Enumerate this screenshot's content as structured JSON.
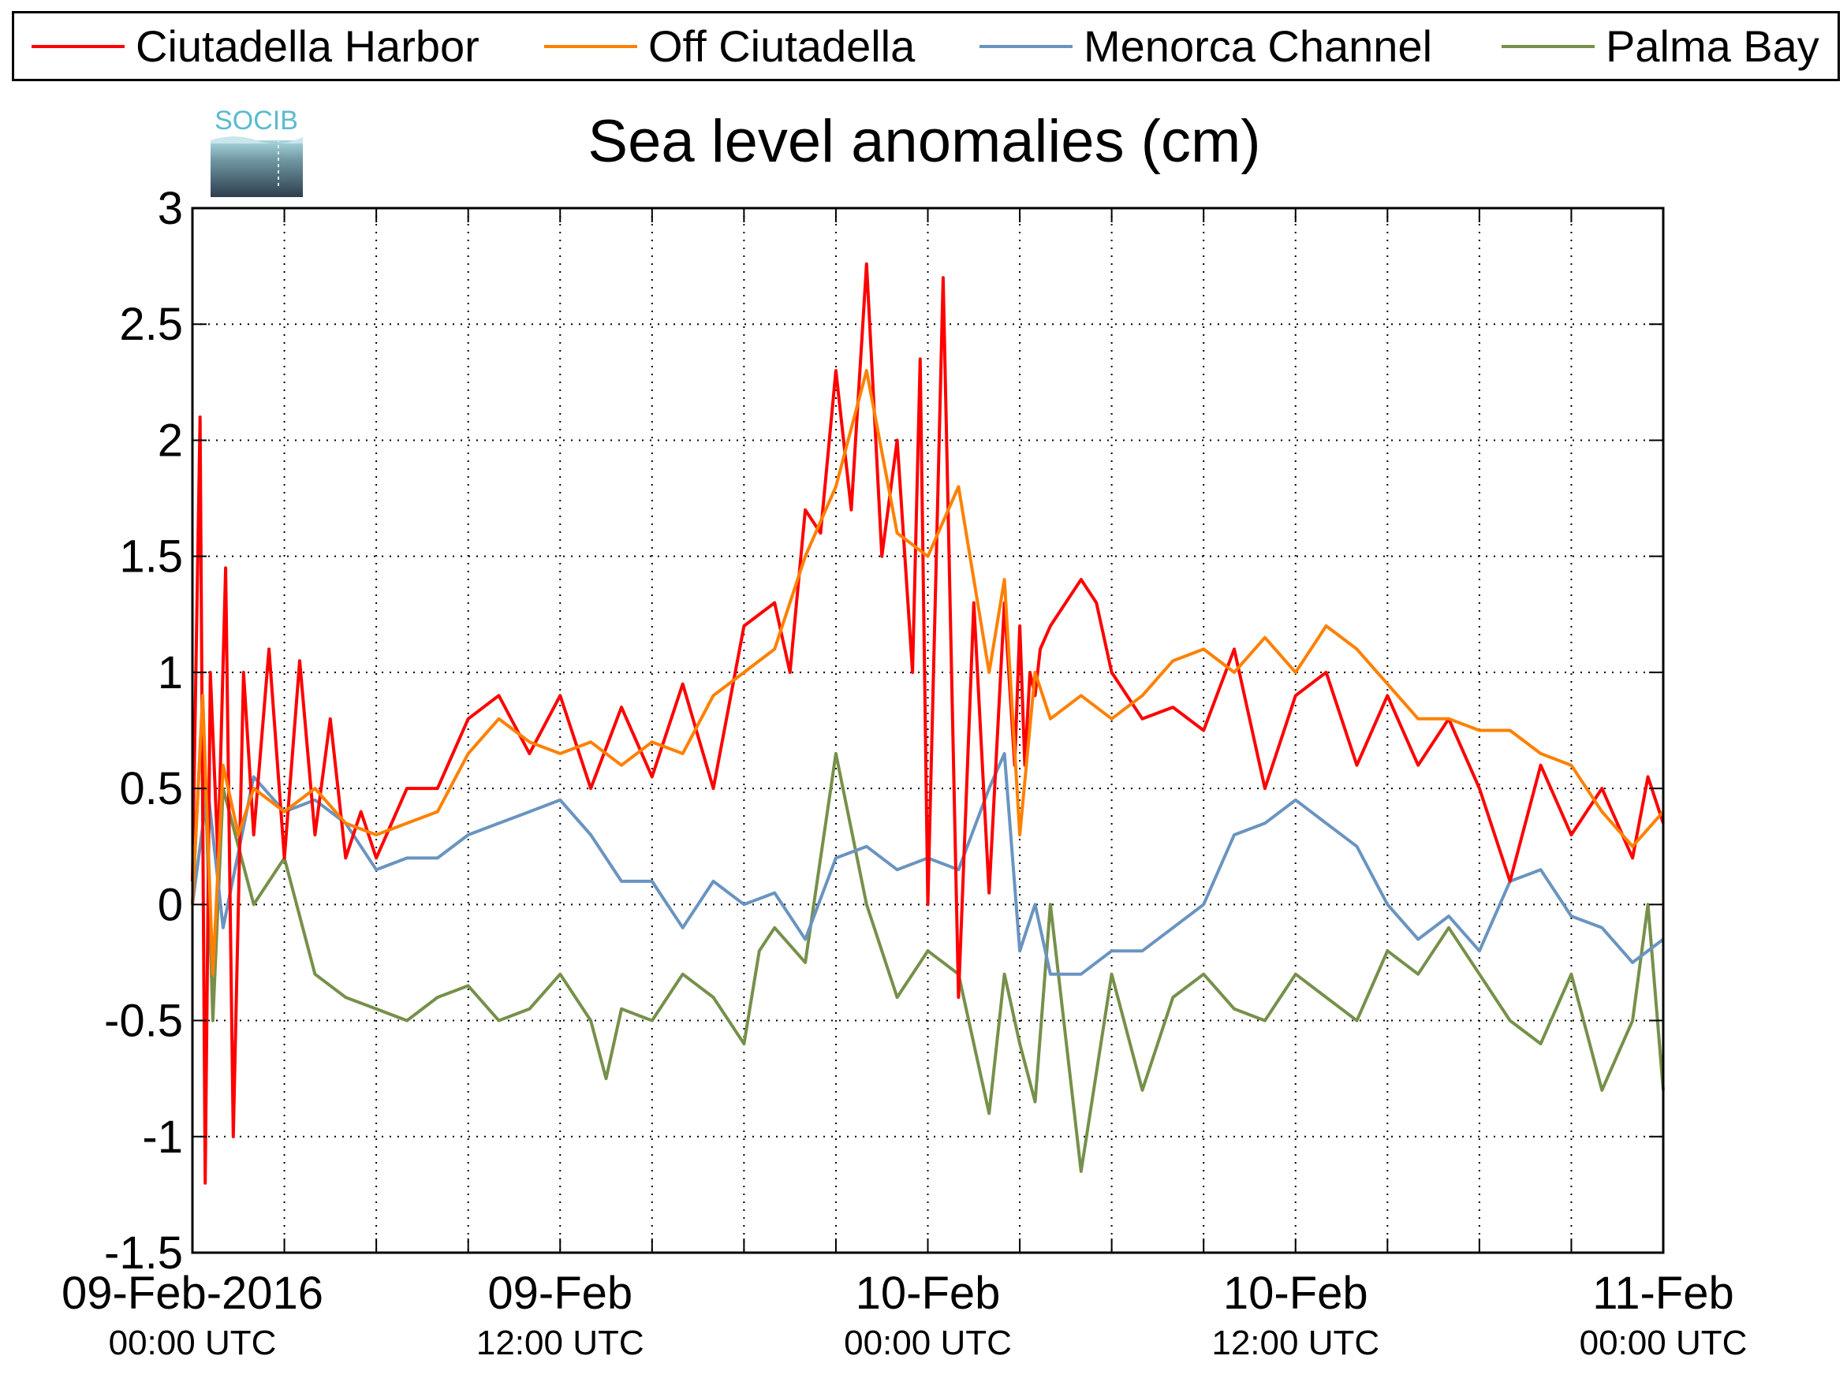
{
  "chart_data": {
    "type": "line",
    "title": "Sea level anomalies (cm)",
    "xlabel": "",
    "ylabel": "",
    "ylim": [
      -1.5,
      3
    ],
    "xlim": [
      "2016-02-09 00:00",
      "2016-02-11 00:00"
    ],
    "yticks": [
      "3",
      "2.5",
      "2",
      "1.5",
      "1",
      "0.5",
      "0",
      "-0.5",
      "-1",
      "-1.5"
    ],
    "xticks": [
      {
        "date": "09-Feb-2016",
        "time": "00:00 UTC"
      },
      {
        "date": "09-Feb",
        "time": "12:00 UTC"
      },
      {
        "date": "10-Feb",
        "time": "00:00 UTC"
      },
      {
        "date": "10-Feb",
        "time": "12:00 UTC"
      },
      {
        "date": "11-Feb",
        "time": "00:00 UTC"
      }
    ],
    "grid": true,
    "legend_position": "top",
    "series": [
      {
        "name": "Ciutadella Harbor",
        "color": "#ff0000",
        "x": [
          "2016-02-09 00:00",
          "2016-02-09 00:15",
          "2016-02-09 00:25",
          "2016-02-09 00:35",
          "2016-02-09 00:50",
          "2016-02-09 01:05",
          "2016-02-09 01:20",
          "2016-02-09 01:40",
          "2016-02-09 02:00",
          "2016-02-09 02:30",
          "2016-02-09 03:00",
          "2016-02-09 03:30",
          "2016-02-09 04:00",
          "2016-02-09 04:30",
          "2016-02-09 05:00",
          "2016-02-09 05:30",
          "2016-02-09 06:00",
          "2016-02-09 07:00",
          "2016-02-09 08:00",
          "2016-02-09 09:00",
          "2016-02-09 10:00",
          "2016-02-09 11:00",
          "2016-02-09 12:00",
          "2016-02-09 13:00",
          "2016-02-09 14:00",
          "2016-02-09 15:00",
          "2016-02-09 16:00",
          "2016-02-09 17:00",
          "2016-02-09 18:00",
          "2016-02-09 19:00",
          "2016-02-09 19:30",
          "2016-02-09 20:00",
          "2016-02-09 20:30",
          "2016-02-09 21:00",
          "2016-02-09 21:30",
          "2016-02-09 22:00",
          "2016-02-09 22:30",
          "2016-02-09 23:00",
          "2016-02-09 23:30",
          "2016-02-09 23:45",
          "2016-02-10 00:00",
          "2016-02-10 00:30",
          "2016-02-10 01:00",
          "2016-02-10 01:30",
          "2016-02-10 02:00",
          "2016-02-10 02:30",
          "2016-02-10 02:50",
          "2016-02-10 03:00",
          "2016-02-10 03:10",
          "2016-02-10 03:20",
          "2016-02-10 03:30",
          "2016-02-10 03:40",
          "2016-02-10 04:00",
          "2016-02-10 04:30",
          "2016-02-10 05:00",
          "2016-02-10 05:30",
          "2016-02-10 06:00",
          "2016-02-10 07:00",
          "2016-02-10 08:00",
          "2016-02-10 09:00",
          "2016-02-10 10:00",
          "2016-02-10 11:00",
          "2016-02-10 12:00",
          "2016-02-10 13:00",
          "2016-02-10 14:00",
          "2016-02-10 15:00",
          "2016-02-10 16:00",
          "2016-02-10 17:00",
          "2016-02-10 18:00",
          "2016-02-10 19:00",
          "2016-02-10 20:00",
          "2016-02-10 21:00",
          "2016-02-10 22:00",
          "2016-02-10 23:00",
          "2016-02-10 23:30",
          "2016-02-11 00:00"
        ],
        "y": [
          0.1,
          2.1,
          -1.2,
          1.0,
          0.2,
          1.45,
          -1.0,
          1.0,
          0.3,
          1.1,
          0.2,
          1.05,
          0.3,
          0.8,
          0.2,
          0.4,
          0.2,
          0.5,
          0.5,
          0.8,
          0.9,
          0.65,
          0.9,
          0.5,
          0.85,
          0.55,
          0.95,
          0.5,
          1.2,
          1.3,
          1.0,
          1.7,
          1.6,
          2.3,
          1.7,
          2.76,
          1.5,
          2.0,
          1.0,
          2.35,
          0.0,
          2.7,
          -0.4,
          1.3,
          0.05,
          1.3,
          0.6,
          1.2,
          0.6,
          1.0,
          0.9,
          1.1,
          1.2,
          1.3,
          1.4,
          1.3,
          1.0,
          0.8,
          0.85,
          0.75,
          1.1,
          0.5,
          0.9,
          1.0,
          0.6,
          0.9,
          0.6,
          0.8,
          0.5,
          0.1,
          0.6,
          0.3,
          0.5,
          0.2,
          0.55,
          0.35
        ]
      },
      {
        "name": "Off Ciutadella",
        "color": "#ff8000",
        "x": [
          "2016-02-09 00:00",
          "2016-02-09 00:20",
          "2016-02-09 00:40",
          "2016-02-09 01:00",
          "2016-02-09 01:30",
          "2016-02-09 02:00",
          "2016-02-09 03:00",
          "2016-02-09 04:00",
          "2016-02-09 05:00",
          "2016-02-09 06:00",
          "2016-02-09 07:00",
          "2016-02-09 08:00",
          "2016-02-09 09:00",
          "2016-02-09 10:00",
          "2016-02-09 11:00",
          "2016-02-09 12:00",
          "2016-02-09 13:00",
          "2016-02-09 14:00",
          "2016-02-09 15:00",
          "2016-02-09 16:00",
          "2016-02-09 17:00",
          "2016-02-09 18:00",
          "2016-02-09 19:00",
          "2016-02-09 20:00",
          "2016-02-09 21:00",
          "2016-02-09 22:00",
          "2016-02-09 23:00",
          "2016-02-10 00:00",
          "2016-02-10 01:00",
          "2016-02-10 02:00",
          "2016-02-10 02:30",
          "2016-02-10 03:00",
          "2016-02-10 03:30",
          "2016-02-10 04:00",
          "2016-02-10 05:00",
          "2016-02-10 06:00",
          "2016-02-10 07:00",
          "2016-02-10 08:00",
          "2016-02-10 09:00",
          "2016-02-10 10:00",
          "2016-02-10 11:00",
          "2016-02-10 12:00",
          "2016-02-10 13:00",
          "2016-02-10 14:00",
          "2016-02-10 15:00",
          "2016-02-10 16:00",
          "2016-02-10 17:00",
          "2016-02-10 18:00",
          "2016-02-10 19:00",
          "2016-02-10 20:00",
          "2016-02-10 21:00",
          "2016-02-10 22:00",
          "2016-02-10 23:00",
          "2016-02-11 00:00"
        ],
        "y": [
          0.0,
          0.9,
          -0.3,
          0.6,
          0.3,
          0.5,
          0.4,
          0.5,
          0.35,
          0.3,
          0.35,
          0.4,
          0.65,
          0.8,
          0.7,
          0.65,
          0.7,
          0.6,
          0.7,
          0.65,
          0.9,
          1.0,
          1.1,
          1.5,
          1.8,
          2.3,
          1.6,
          1.5,
          1.8,
          1.0,
          1.4,
          0.3,
          1.0,
          0.8,
          0.9,
          0.8,
          0.9,
          1.05,
          1.1,
          1.0,
          1.15,
          1.0,
          1.2,
          1.1,
          0.95,
          0.8,
          0.8,
          0.75,
          0.75,
          0.65,
          0.6,
          0.4,
          0.25,
          0.4
        ]
      },
      {
        "name": "Menorca Channel",
        "color": "#6a94c0",
        "x": [
          "2016-02-09 00:00",
          "2016-02-09 00:30",
          "2016-02-09 01:00",
          "2016-02-09 02:00",
          "2016-02-09 03:00",
          "2016-02-09 04:00",
          "2016-02-09 05:00",
          "2016-02-09 06:00",
          "2016-02-09 07:00",
          "2016-02-09 08:00",
          "2016-02-09 09:00",
          "2016-02-09 10:00",
          "2016-02-09 11:00",
          "2016-02-09 12:00",
          "2016-02-09 13:00",
          "2016-02-09 14:00",
          "2016-02-09 15:00",
          "2016-02-09 16:00",
          "2016-02-09 17:00",
          "2016-02-09 18:00",
          "2016-02-09 19:00",
          "2016-02-09 20:00",
          "2016-02-09 21:00",
          "2016-02-09 22:00",
          "2016-02-09 23:00",
          "2016-02-10 00:00",
          "2016-02-10 01:00",
          "2016-02-10 02:00",
          "2016-02-10 02:30",
          "2016-02-10 03:00",
          "2016-02-10 03:30",
          "2016-02-10 04:00",
          "2016-02-10 05:00",
          "2016-02-10 06:00",
          "2016-02-10 07:00",
          "2016-02-10 08:00",
          "2016-02-10 09:00",
          "2016-02-10 10:00",
          "2016-02-10 11:00",
          "2016-02-10 12:00",
          "2016-02-10 13:00",
          "2016-02-10 14:00",
          "2016-02-10 15:00",
          "2016-02-10 16:00",
          "2016-02-10 17:00",
          "2016-02-10 18:00",
          "2016-02-10 19:00",
          "2016-02-10 20:00",
          "2016-02-10 21:00",
          "2016-02-10 22:00",
          "2016-02-10 23:00",
          "2016-02-11 00:00"
        ],
        "y": [
          0.0,
          0.5,
          -0.1,
          0.55,
          0.4,
          0.45,
          0.35,
          0.15,
          0.2,
          0.2,
          0.3,
          0.35,
          0.4,
          0.45,
          0.3,
          0.1,
          0.1,
          -0.1,
          0.1,
          0.0,
          0.05,
          -0.15,
          0.2,
          0.25,
          0.15,
          0.2,
          0.15,
          0.5,
          0.65,
          -0.2,
          0.0,
          -0.3,
          -0.3,
          -0.2,
          -0.2,
          -0.1,
          0.0,
          0.3,
          0.35,
          0.45,
          0.35,
          0.25,
          0.0,
          -0.15,
          -0.05,
          -0.2,
          0.1,
          0.15,
          -0.05,
          -0.1,
          -0.25,
          -0.15
        ]
      },
      {
        "name": "Palma Bay",
        "color": "#76904a",
        "x": [
          "2016-02-09 00:00",
          "2016-02-09 00:20",
          "2016-02-09 00:40",
          "2016-02-09 01:00",
          "2016-02-09 02:00",
          "2016-02-09 03:00",
          "2016-02-09 04:00",
          "2016-02-09 05:00",
          "2016-02-09 06:00",
          "2016-02-09 07:00",
          "2016-02-09 08:00",
          "2016-02-09 09:00",
          "2016-02-09 10:00",
          "2016-02-09 11:00",
          "2016-02-09 12:00",
          "2016-02-09 13:00",
          "2016-02-09 13:30",
          "2016-02-09 14:00",
          "2016-02-09 15:00",
          "2016-02-09 16:00",
          "2016-02-09 17:00",
          "2016-02-09 18:00",
          "2016-02-09 18:30",
          "2016-02-09 19:00",
          "2016-02-09 20:00",
          "2016-02-09 21:00",
          "2016-02-09 22:00",
          "2016-02-09 23:00",
          "2016-02-10 00:00",
          "2016-02-10 01:00",
          "2016-02-10 02:00",
          "2016-02-10 02:30",
          "2016-02-10 03:00",
          "2016-02-10 03:30",
          "2016-02-10 04:00",
          "2016-02-10 05:00",
          "2016-02-10 06:00",
          "2016-02-10 07:00",
          "2016-02-10 08:00",
          "2016-02-10 09:00",
          "2016-02-10 10:00",
          "2016-02-10 11:00",
          "2016-02-10 12:00",
          "2016-02-10 13:00",
          "2016-02-10 14:00",
          "2016-02-10 15:00",
          "2016-02-10 16:00",
          "2016-02-10 17:00",
          "2016-02-10 18:00",
          "2016-02-10 19:00",
          "2016-02-10 20:00",
          "2016-02-10 21:00",
          "2016-02-10 22:00",
          "2016-02-10 23:00",
          "2016-02-10 23:30",
          "2016-02-11 00:00"
        ],
        "y": [
          0.0,
          0.9,
          -0.5,
          0.5,
          0.0,
          0.2,
          -0.3,
          -0.4,
          -0.45,
          -0.5,
          -0.4,
          -0.35,
          -0.5,
          -0.45,
          -0.3,
          -0.5,
          -0.75,
          -0.45,
          -0.5,
          -0.3,
          -0.4,
          -0.6,
          -0.2,
          -0.1,
          -0.25,
          0.65,
          0.0,
          -0.4,
          -0.2,
          -0.3,
          -0.9,
          -0.3,
          -0.6,
          -0.85,
          0.0,
          -1.15,
          -0.3,
          -0.8,
          -0.4,
          -0.3,
          -0.45,
          -0.5,
          -0.3,
          -0.4,
          -0.5,
          -0.2,
          -0.3,
          -0.1,
          -0.3,
          -0.5,
          -0.6,
          -0.3,
          -0.8,
          -0.5,
          0.0,
          -0.8
        ]
      }
    ]
  },
  "legend": {
    "items": [
      "Ciutadella Harbor",
      "Off Ciutadella",
      "Menorca Channel",
      "Palma Bay"
    ]
  },
  "logo": {
    "text": "SOCIB"
  }
}
